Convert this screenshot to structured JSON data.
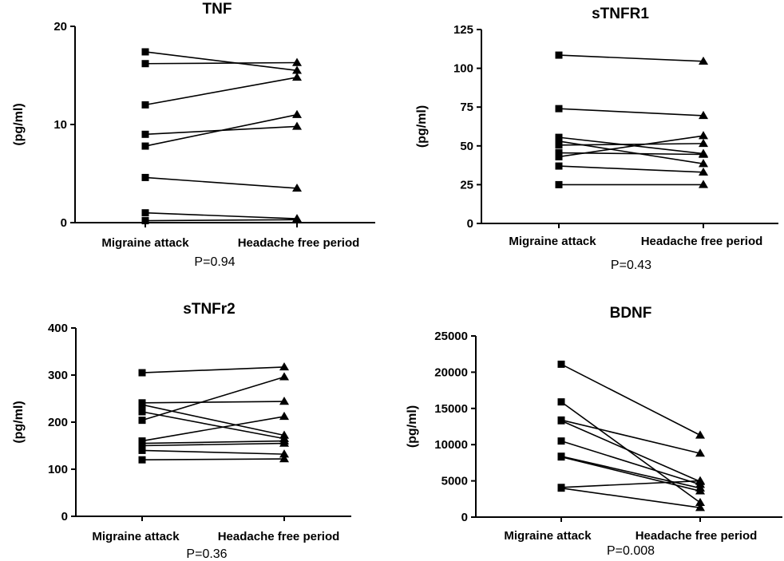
{
  "chart_data": [
    {
      "type": "line",
      "title": "TNF",
      "ylabel": "(pg/ml)",
      "categories": [
        "Migraine attack",
        "Headache free period"
      ],
      "ylim": [
        0,
        20
      ],
      "yticks": [
        0,
        10,
        20
      ],
      "pvalue": "P=0.94",
      "pairs": [
        [
          17.4,
          15.5
        ],
        [
          16.2,
          16.3
        ],
        [
          12.0,
          14.8
        ],
        [
          9.0,
          9.8
        ],
        [
          7.8,
          11.0
        ],
        [
          4.6,
          3.5
        ],
        [
          1.0,
          0.4
        ],
        [
          0.2,
          0.3
        ]
      ]
    },
    {
      "type": "line",
      "title": "sTNFR1",
      "ylabel": "(pg/ml)",
      "categories": [
        "Migraine attack",
        "Headache free period"
      ],
      "ylim": [
        0,
        125
      ],
      "yticks": [
        0,
        25,
        50,
        75,
        100,
        125
      ],
      "pvalue": "P=0.43",
      "pairs": [
        [
          108.5,
          104.5
        ],
        [
          74.0,
          69.5
        ],
        [
          55.5,
          45.0
        ],
        [
          53.0,
          38.5
        ],
        [
          50.5,
          51.5
        ],
        [
          45.5,
          44.5
        ],
        [
          43.0,
          56.5
        ],
        [
          37.0,
          33.0
        ],
        [
          25.0,
          25.0
        ]
      ]
    },
    {
      "type": "line",
      "title": "sTNFr2",
      "ylabel": "(pg/ml)",
      "categories": [
        "Migraine attack",
        "Headache free period"
      ],
      "ylim": [
        0,
        400
      ],
      "yticks": [
        0,
        100,
        200,
        300,
        400
      ],
      "pvalue": "P=0.36",
      "pairs": [
        [
          305,
          317
        ],
        [
          241,
          244
        ],
        [
          237,
          172
        ],
        [
          222,
          165
        ],
        [
          204,
          296
        ],
        [
          160,
          212
        ],
        [
          155,
          160
        ],
        [
          150,
          155
        ],
        [
          140,
          132
        ],
        [
          120,
          122
        ]
      ]
    },
    {
      "type": "line",
      "title": "BDNF",
      "ylabel": "(pg/ml)",
      "categories": [
        "Migraine attack",
        "Headache free period"
      ],
      "ylim": [
        0,
        25000
      ],
      "yticks": [
        0,
        5000,
        10000,
        15000,
        20000,
        25000
      ],
      "pvalue": "P=0.008",
      "pairs": [
        [
          21100,
          11300
        ],
        [
          15900,
          2000
        ],
        [
          13400,
          8800
        ],
        [
          13300,
          4900
        ],
        [
          10500,
          4500
        ],
        [
          8400,
          4000
        ],
        [
          8300,
          3600
        ],
        [
          4100,
          5000
        ],
        [
          4000,
          1300
        ]
      ]
    }
  ]
}
